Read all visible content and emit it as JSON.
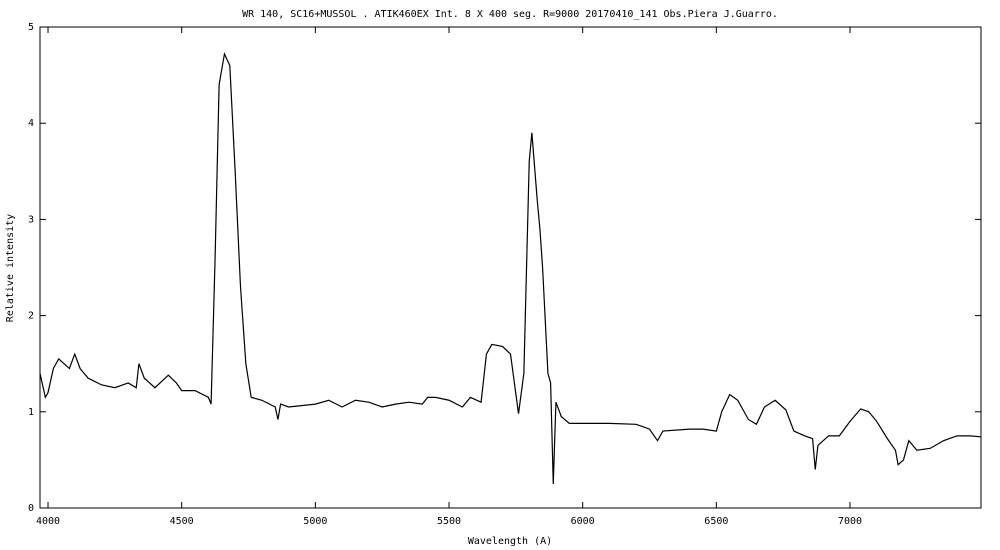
{
  "chart_data": {
    "type": "line",
    "title": "WR 140,  SC16+MUSSOL . ATIK460EX  Int. 8 X 400 seg.  R=9000   20170410_141  Obs.Piera  J.Guarro.",
    "x_label": "Wavelength (A)",
    "y_label": "Relative intensity",
    "xlim": [
      3970,
      7490
    ],
    "ylim": [
      0,
      5
    ],
    "xticks": [
      4000,
      4500,
      5000,
      5500,
      6000,
      6500,
      7000
    ],
    "yticks": [
      0,
      1,
      2,
      3,
      4,
      5
    ],
    "grid": false,
    "x": [
      3970,
      3990,
      4000,
      4020,
      4040,
      4060,
      4080,
      4100,
      4120,
      4150,
      4200,
      4250,
      4300,
      4330,
      4340,
      4360,
      4400,
      4450,
      4480,
      4500,
      4550,
      4600,
      4610,
      4625,
      4640,
      4660,
      4680,
      4700,
      4720,
      4740,
      4760,
      4800,
      4850,
      4860,
      4870,
      4900,
      5000,
      5050,
      5100,
      5150,
      5200,
      5250,
      5300,
      5350,
      5400,
      5420,
      5450,
      5500,
      5550,
      5580,
      5620,
      5640,
      5660,
      5700,
      5730,
      5760,
      5780,
      5800,
      5810,
      5830,
      5840,
      5850,
      5870,
      5880,
      5890,
      5900,
      5920,
      5950,
      6000,
      6100,
      6200,
      6250,
      6280,
      6300,
      6400,
      6450,
      6500,
      6520,
      6550,
      6580,
      6620,
      6650,
      6680,
      6720,
      6760,
      6790,
      6830,
      6860,
      6870,
      6880,
      6920,
      6960,
      7000,
      7040,
      7070,
      7100,
      7140,
      7170,
      7180,
      7200,
      7220,
      7250,
      7300,
      7350,
      7400,
      7450,
      7490
    ],
    "series": [
      {
        "name": "WR 140",
        "color": "#000000",
        "values": [
          1.4,
          1.15,
          1.2,
          1.45,
          1.55,
          1.5,
          1.45,
          1.6,
          1.45,
          1.35,
          1.28,
          1.25,
          1.3,
          1.25,
          1.5,
          1.35,
          1.25,
          1.38,
          1.3,
          1.22,
          1.22,
          1.15,
          1.08,
          2.6,
          4.4,
          4.72,
          4.6,
          3.5,
          2.3,
          1.5,
          1.15,
          1.12,
          1.05,
          0.92,
          1.08,
          1.05,
          1.08,
          1.12,
          1.05,
          1.12,
          1.1,
          1.05,
          1.08,
          1.1,
          1.08,
          1.15,
          1.15,
          1.12,
          1.05,
          1.15,
          1.1,
          1.6,
          1.7,
          1.68,
          1.6,
          0.98,
          1.4,
          3.6,
          3.9,
          3.2,
          2.9,
          2.5,
          1.4,
          1.3,
          0.25,
          1.1,
          0.95,
          0.88,
          0.88,
          0.88,
          0.87,
          0.82,
          0.7,
          0.8,
          0.82,
          0.82,
          0.8,
          1.0,
          1.18,
          1.12,
          0.92,
          0.87,
          1.05,
          1.12,
          1.02,
          0.8,
          0.75,
          0.72,
          0.4,
          0.65,
          0.75,
          0.75,
          0.9,
          1.03,
          1.0,
          0.9,
          0.72,
          0.6,
          0.45,
          0.5,
          0.7,
          0.6,
          0.62,
          0.7,
          0.75,
          0.75,
          0.74
        ]
      }
    ]
  }
}
